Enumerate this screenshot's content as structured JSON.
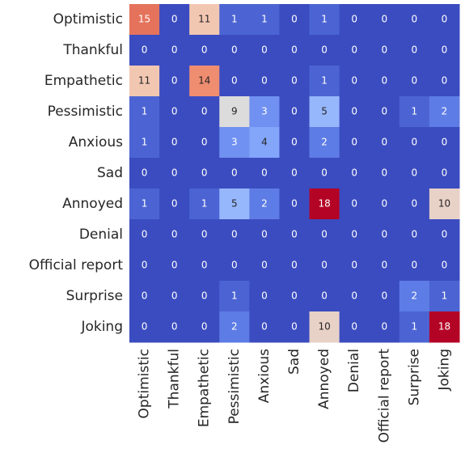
{
  "chart_data": {
    "type": "heatmap",
    "colormap": "coolwarm",
    "x": [
      "Optimistic",
      "Thankful",
      "Empathetic",
      "Pessimistic",
      "Anxious",
      "Sad",
      "Annoyed",
      "Denial",
      "Official report",
      "Surprise",
      "Joking"
    ],
    "y": [
      "Optimistic",
      "Thankful",
      "Empathetic",
      "Pessimistic",
      "Anxious",
      "Sad",
      "Annoyed",
      "Denial",
      "Official report",
      "Surprise",
      "Joking"
    ],
    "values": [
      [
        15,
        0,
        11,
        1,
        1,
        0,
        1,
        0,
        0,
        0,
        0
      ],
      [
        0,
        0,
        0,
        0,
        0,
        0,
        0,
        0,
        0,
        0,
        0
      ],
      [
        11,
        0,
        14,
        0,
        0,
        0,
        1,
        0,
        0,
        0,
        0
      ],
      [
        1,
        0,
        0,
        9,
        3,
        0,
        5,
        0,
        0,
        1,
        2
      ],
      [
        1,
        0,
        0,
        3,
        4,
        0,
        2,
        0,
        0,
        0,
        0
      ],
      [
        0,
        0,
        0,
        0,
        0,
        0,
        0,
        0,
        0,
        0,
        0
      ],
      [
        1,
        0,
        1,
        5,
        2,
        0,
        18,
        0,
        0,
        0,
        10
      ],
      [
        0,
        0,
        0,
        0,
        0,
        0,
        0,
        0,
        0,
        0,
        0
      ],
      [
        0,
        0,
        0,
        0,
        0,
        0,
        0,
        0,
        0,
        0,
        0
      ],
      [
        0,
        0,
        0,
        1,
        0,
        0,
        0,
        0,
        0,
        2,
        1
      ],
      [
        0,
        0,
        0,
        2,
        0,
        0,
        10,
        0,
        0,
        1,
        18
      ]
    ]
  }
}
